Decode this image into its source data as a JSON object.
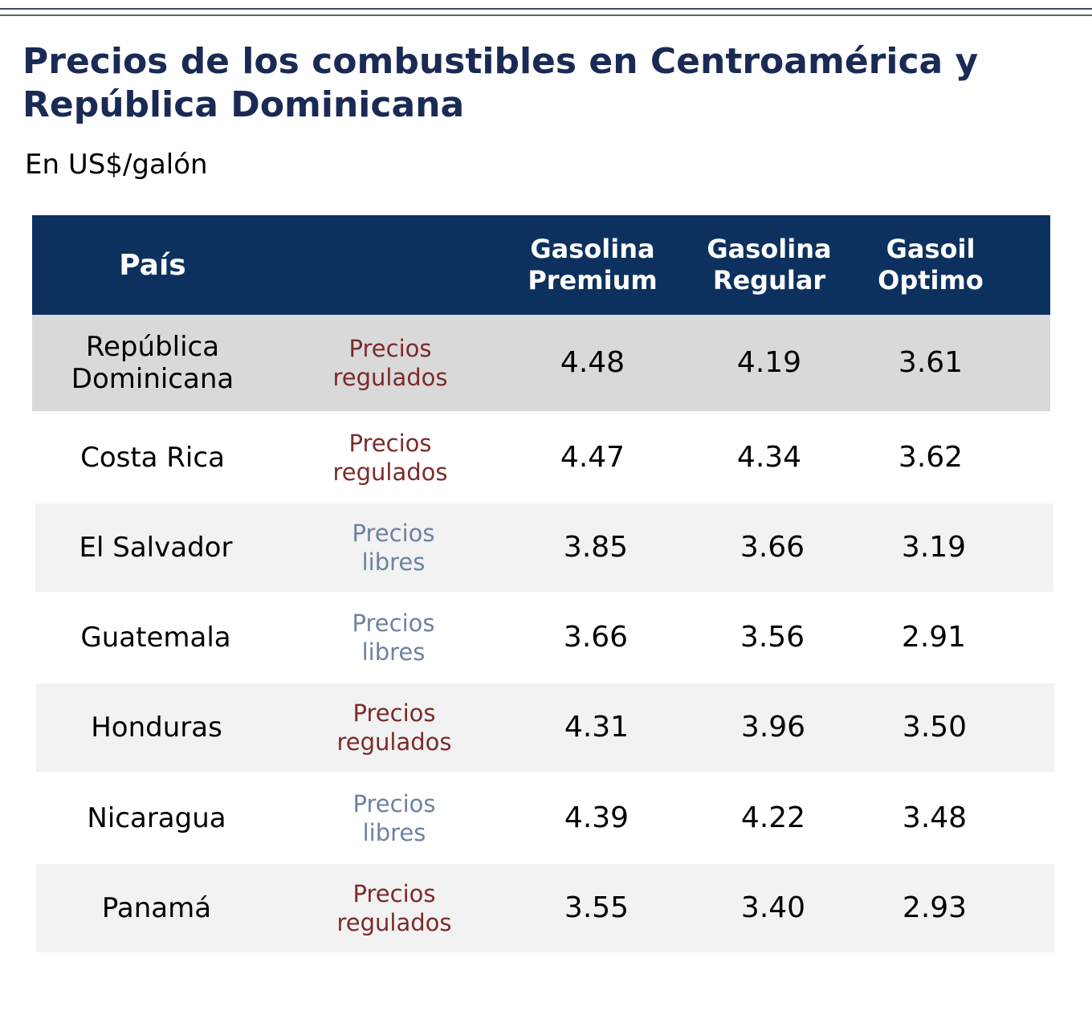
{
  "chart_data": {
    "type": "table",
    "title": "Precios de los combustibles en Centroamérica y República Dominicana",
    "subtitle": "En US$/galón",
    "columns": [
      "País",
      "",
      "Gasolina Premium",
      "Gasolina Regular",
      "Gasoil Optimo"
    ],
    "header": {
      "pais": "País",
      "premium": "Gasolina Premium",
      "regular": "Gasolina Regular",
      "gasoil": "Gasoil Optimo"
    },
    "rows": [
      {
        "country": "República Dominicana",
        "regime": "Precios regulados",
        "premium": "4.48",
        "regular": "4.19",
        "gasoil": "3.61"
      },
      {
        "country": "Costa Rica",
        "regime": "Precios regulados",
        "premium": "4.47",
        "regular": "4.34",
        "gasoil": "3.62"
      },
      {
        "country": "El Salvador",
        "regime": "Precios libres",
        "premium": "3.85",
        "regular": "3.66",
        "gasoil": "3.19"
      },
      {
        "country": "Guatemala",
        "regime": "Precios libres",
        "premium": "3.66",
        "regular": "3.56",
        "gasoil": "2.91"
      },
      {
        "country": "Honduras",
        "regime": "Precios regulados",
        "premium": "4.31",
        "regular": "3.96",
        "gasoil": "3.50"
      },
      {
        "country": "Nicaragua",
        "regime": "Precios libres",
        "premium": "4.39",
        "regular": "4.22",
        "gasoil": "3.48"
      },
      {
        "country": "Panamá",
        "regime": "Precios regulados",
        "premium": "3.55",
        "regular": "3.40",
        "gasoil": "2.93"
      }
    ]
  },
  "colors": {
    "header_bg": "#0d315e",
    "title": "#1a2a55",
    "regulados": "#7e2a2a",
    "libres": "#6e82a2",
    "row_highlight": "#d9d9d9",
    "row_alt": "#f2f2f2",
    "row_plain": "#ffffff"
  }
}
